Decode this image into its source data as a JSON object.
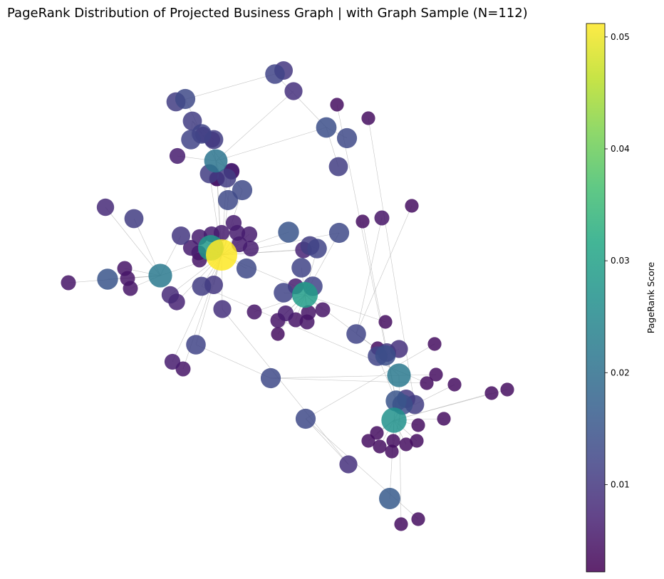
{
  "chart_data": {
    "type": "network",
    "title": "PageRank Distribution of Projected Business Graph | with Graph Sample (N=112)",
    "colorbar": {
      "label": "PageRank Score",
      "colormap": "viridis",
      "range": [
        0.0022,
        0.0512
      ],
      "ticks": [
        0.01,
        0.02,
        0.03,
        0.04,
        0.05
      ],
      "tick_labels": [
        "0.01",
        "0.02",
        "0.03",
        "0.04",
        "0.05"
      ]
    },
    "node_count": 112,
    "nodes": [
      {
        "id": "n1",
        "pr": 0.0512
      },
      {
        "id": "n2",
        "pr": 0.029
      },
      {
        "id": "n3",
        "pr": 0.027
      },
      {
        "id": "n4",
        "pr": 0.0285
      },
      {
        "id": "n5",
        "pr": 0.022
      },
      {
        "id": "n6",
        "pr": 0.021
      },
      {
        "id": "n7",
        "pr": 0.022
      },
      {
        "id": "n8",
        "pr": 0.016
      },
      {
        "id": "n9",
        "pr": 0.014
      },
      {
        "id": "n10",
        "pr": 0.012
      },
      {
        "id": "n11",
        "pr": 0.014
      },
      {
        "id": "n12",
        "pr": 0.013
      },
      {
        "id": "n13",
        "pr": 0.015
      },
      {
        "id": "n14",
        "pr": 0.015
      },
      {
        "id": "n15",
        "pr": 0.012
      },
      {
        "id": "n16",
        "pr": 0.012
      },
      {
        "id": "n17",
        "pr": 0.01
      },
      {
        "id": "n18",
        "pr": 0.012
      },
      {
        "id": "n19",
        "pr": 0.013
      },
      {
        "id": "n20",
        "pr": 0.014
      },
      {
        "id": "n21",
        "pr": 0.013
      },
      {
        "id": "n22",
        "pr": 0.011
      },
      {
        "id": "n23",
        "pr": 0.009
      },
      {
        "id": "n24",
        "pr": 0.012
      },
      {
        "id": "n25",
        "pr": 0.013
      },
      {
        "id": "n26",
        "pr": 0.011
      },
      {
        "id": "n27",
        "pr": 0.011
      },
      {
        "id": "n28",
        "pr": 0.015
      },
      {
        "id": "n29",
        "pr": 0.013
      },
      {
        "id": "n30",
        "pr": 0.012
      },
      {
        "id": "n31",
        "pr": 0.012
      },
      {
        "id": "n32",
        "pr": 0.011
      },
      {
        "id": "n33",
        "pr": 0.011
      },
      {
        "id": "n34",
        "pr": 0.01
      },
      {
        "id": "n35",
        "pr": 0.013
      },
      {
        "id": "n36",
        "pr": 0.011
      },
      {
        "id": "n37",
        "pr": 0.009
      },
      {
        "id": "n38",
        "pr": 0.01
      },
      {
        "id": "n39",
        "pr": 0.013
      },
      {
        "id": "n40",
        "pr": 0.012
      },
      {
        "id": "n41",
        "pr": 0.01
      },
      {
        "id": "n42",
        "pr": 0.011
      },
      {
        "id": "n43",
        "pr": 0.012
      },
      {
        "id": "n44",
        "pr": 0.013
      },
      {
        "id": "n45",
        "pr": 0.011
      },
      {
        "id": "n46",
        "pr": 0.012
      },
      {
        "id": "n47",
        "pr": 0.011
      },
      {
        "id": "n48",
        "pr": 0.009
      },
      {
        "id": "n49",
        "pr": 0.011
      },
      {
        "id": "n50",
        "pr": 0.01
      },
      {
        "id": "n51",
        "pr": 0.009
      },
      {
        "id": "n52",
        "pr": 0.006
      },
      {
        "id": "n53",
        "pr": 0.006
      },
      {
        "id": "n54",
        "pr": 0.006
      },
      {
        "id": "n55",
        "pr": 0.006
      },
      {
        "id": "n56",
        "pr": 0.005
      },
      {
        "id": "n57",
        "pr": 0.005
      },
      {
        "id": "n58",
        "pr": 0.006
      },
      {
        "id": "n59",
        "pr": 0.005
      },
      {
        "id": "n60",
        "pr": 0.005
      },
      {
        "id": "n61",
        "pr": 0.005
      },
      {
        "id": "n62",
        "pr": 0.005
      },
      {
        "id": "n63",
        "pr": 0.005
      },
      {
        "id": "n64",
        "pr": 0.008
      },
      {
        "id": "n65",
        "pr": 0.007
      },
      {
        "id": "n66",
        "pr": 0.006
      },
      {
        "id": "n67",
        "pr": 0.008
      },
      {
        "id": "n68",
        "pr": 0.006
      },
      {
        "id": "n69",
        "pr": 0.006
      },
      {
        "id": "n70",
        "pr": 0.006
      },
      {
        "id": "n71",
        "pr": 0.006
      },
      {
        "id": "n72",
        "pr": 0.007
      },
      {
        "id": "n73",
        "pr": 0.006
      },
      {
        "id": "n74",
        "pr": 0.006
      },
      {
        "id": "n75",
        "pr": 0.006
      },
      {
        "id": "n76",
        "pr": 0.006
      },
      {
        "id": "n77",
        "pr": 0.005
      },
      {
        "id": "n78",
        "pr": 0.006
      },
      {
        "id": "n79",
        "pr": 0.006
      },
      {
        "id": "n80",
        "pr": 0.005
      },
      {
        "id": "n81",
        "pr": 0.005
      },
      {
        "id": "n82",
        "pr": 0.006
      },
      {
        "id": "n83",
        "pr": 0.004
      },
      {
        "id": "n84",
        "pr": 0.005
      },
      {
        "id": "n85",
        "pr": 0.005
      },
      {
        "id": "n86",
        "pr": 0.005
      },
      {
        "id": "n87",
        "pr": 0.005
      },
      {
        "id": "n88",
        "pr": 0.005
      },
      {
        "id": "n89",
        "pr": 0.004
      },
      {
        "id": "n90",
        "pr": 0.004
      },
      {
        "id": "n91",
        "pr": 0.005
      },
      {
        "id": "n92",
        "pr": 0.004
      },
      {
        "id": "n93",
        "pr": 0.004
      },
      {
        "id": "n94",
        "pr": 0.004
      },
      {
        "id": "n95",
        "pr": 0.004
      },
      {
        "id": "n96",
        "pr": 0.004
      },
      {
        "id": "n97",
        "pr": 0.004
      },
      {
        "id": "n98",
        "pr": 0.004
      },
      {
        "id": "n99",
        "pr": 0.004
      },
      {
        "id": "n100",
        "pr": 0.004
      },
      {
        "id": "n101",
        "pr": 0.004
      },
      {
        "id": "n102",
        "pr": 0.004
      },
      {
        "id": "n103",
        "pr": 0.004
      },
      {
        "id": "n104",
        "pr": 0.004
      },
      {
        "id": "n105",
        "pr": 0.004
      },
      {
        "id": "n106",
        "pr": 0.004
      },
      {
        "id": "n107",
        "pr": 0.004
      },
      {
        "id": "n108",
        "pr": 0.004
      },
      {
        "id": "n109",
        "pr": 0.004
      },
      {
        "id": "n110",
        "pr": 0.004
      },
      {
        "id": "n111",
        "pr": 0.004
      },
      {
        "id": "n112",
        "pr": 0.004
      }
    ],
    "edges": [
      [
        "n1",
        "n4"
      ],
      [
        "n1",
        "n5"
      ],
      [
        "n1",
        "n6"
      ],
      [
        "n1",
        "n21"
      ],
      [
        "n1",
        "n25"
      ],
      [
        "n1",
        "n26"
      ],
      [
        "n1",
        "n27"
      ],
      [
        "n1",
        "n28"
      ],
      [
        "n1",
        "n29"
      ],
      [
        "n1",
        "n30"
      ],
      [
        "n1",
        "n38"
      ],
      [
        "n1",
        "n52"
      ],
      [
        "n1",
        "n53"
      ],
      [
        "n1",
        "n54"
      ],
      [
        "n1",
        "n55"
      ],
      [
        "n1",
        "n56"
      ],
      [
        "n1",
        "n57"
      ],
      [
        "n1",
        "n58"
      ],
      [
        "n1",
        "n59"
      ],
      [
        "n1",
        "n64"
      ],
      [
        "n1",
        "n65"
      ],
      [
        "n1",
        "n66"
      ],
      [
        "n1",
        "n68"
      ],
      [
        "n1",
        "n69"
      ],
      [
        "n1",
        "n70"
      ],
      [
        "n1",
        "n71"
      ],
      [
        "n1",
        "n72"
      ],
      [
        "n1",
        "n73"
      ],
      [
        "n5",
        "n13"
      ],
      [
        "n5",
        "n33"
      ],
      [
        "n5",
        "n34"
      ],
      [
        "n5",
        "n67"
      ],
      [
        "n5",
        "n60"
      ],
      [
        "n5",
        "n61"
      ],
      [
        "n5",
        "n62"
      ],
      [
        "n5",
        "n63"
      ],
      [
        "n6",
        "n11"
      ],
      [
        "n6",
        "n12"
      ],
      [
        "n6",
        "n37"
      ],
      [
        "n6",
        "n74"
      ],
      [
        "n6",
        "n75"
      ],
      [
        "n6",
        "n76"
      ],
      [
        "n6",
        "n77"
      ],
      [
        "n6",
        "n78"
      ],
      [
        "n11",
        "n36"
      ],
      [
        "n11",
        "n39"
      ],
      [
        "n11",
        "n40"
      ],
      [
        "n40",
        "n41"
      ],
      [
        "n40",
        "n42"
      ],
      [
        "n1",
        "n31"
      ],
      [
        "n31",
        "n35"
      ],
      [
        "n35",
        "n96"
      ],
      [
        "n35",
        "n97"
      ],
      [
        "n1",
        "n22"
      ],
      [
        "n22",
        "n97"
      ],
      [
        "n1",
        "n23"
      ],
      [
        "n23",
        "n48"
      ],
      [
        "n48",
        "n19"
      ],
      [
        "n19",
        "n111"
      ],
      [
        "n19",
        "n112"
      ],
      [
        "n1",
        "n79"
      ],
      [
        "n1",
        "n80"
      ],
      [
        "n25",
        "n32"
      ],
      [
        "n32",
        "n43"
      ],
      [
        "n43",
        "n44"
      ],
      [
        "n32",
        "n45"
      ],
      [
        "n32",
        "n46"
      ],
      [
        "n30",
        "n2"
      ],
      [
        "n30",
        "n47"
      ],
      [
        "n2",
        "n10"
      ],
      [
        "n2",
        "n18"
      ],
      [
        "n2",
        "n24"
      ],
      [
        "n2",
        "n29"
      ],
      [
        "n2",
        "n81"
      ],
      [
        "n2",
        "n82"
      ],
      [
        "n2",
        "n83"
      ],
      [
        "n2",
        "n84"
      ],
      [
        "n2",
        "n85"
      ],
      [
        "n2",
        "n86"
      ],
      [
        "n2",
        "n87"
      ],
      [
        "n2",
        "n88"
      ],
      [
        "n2",
        "n89"
      ],
      [
        "n2",
        "n20"
      ],
      [
        "n20",
        "n15"
      ],
      [
        "n20",
        "n16"
      ],
      [
        "n20",
        "n17"
      ],
      [
        "n20",
        "n90"
      ],
      [
        "n15",
        "n14"
      ],
      [
        "n15",
        "n7"
      ],
      [
        "n16",
        "n91"
      ],
      [
        "n16",
        "n92"
      ],
      [
        "n14",
        "n3"
      ],
      [
        "n14",
        "n9"
      ],
      [
        "n14",
        "n93"
      ],
      [
        "n14",
        "n94"
      ],
      [
        "n14",
        "n49"
      ],
      [
        "n49",
        "n95"
      ],
      [
        "n49",
        "n98"
      ],
      [
        "n3",
        "n8"
      ],
      [
        "n3",
        "n50"
      ],
      [
        "n3",
        "n99"
      ],
      [
        "n3",
        "n100"
      ],
      [
        "n3",
        "n101"
      ],
      [
        "n3",
        "n102"
      ],
      [
        "n3",
        "n103"
      ],
      [
        "n3",
        "n104"
      ],
      [
        "n3",
        "n105"
      ],
      [
        "n3",
        "n106"
      ],
      [
        "n3",
        "n107"
      ],
      [
        "n3",
        "n108"
      ],
      [
        "n9",
        "n109"
      ],
      [
        "n7",
        "n110"
      ],
      [
        "n20",
        "n51"
      ]
    ]
  }
}
